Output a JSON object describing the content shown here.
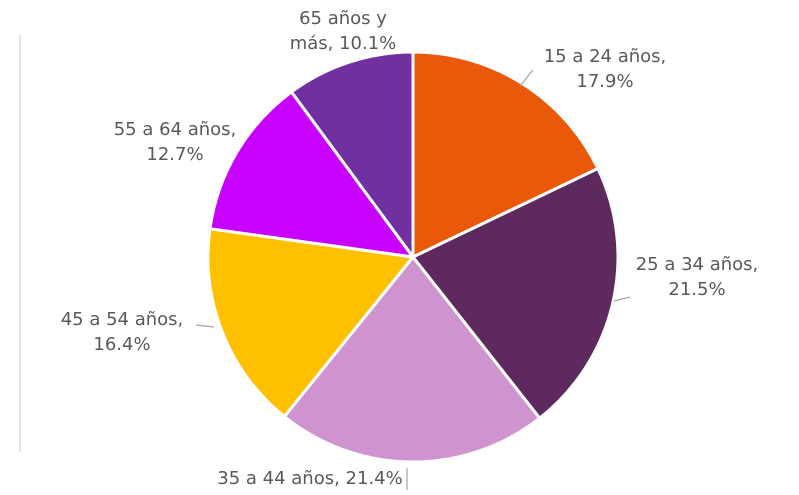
{
  "chart_data": {
    "type": "pie",
    "labels": [
      [
        "15 a 24 años,",
        "17.9%"
      ],
      [
        "25 a 34 años,",
        "21.5%"
      ],
      [
        "35 a 44 años, 21.4%"
      ],
      [
        "45 a 54 años,",
        "16.4%"
      ],
      [
        "55 a 64 años,",
        "12.7%"
      ],
      [
        "65 años y",
        "más, 10.1%"
      ]
    ],
    "values": [
      17.9,
      21.5,
      21.4,
      16.4,
      12.7,
      10.1
    ],
    "colors": [
      "#ea580a",
      "#5e295e",
      "#cf93d0",
      "#ffc000",
      "#c800ff",
      "#7030a0"
    ]
  }
}
